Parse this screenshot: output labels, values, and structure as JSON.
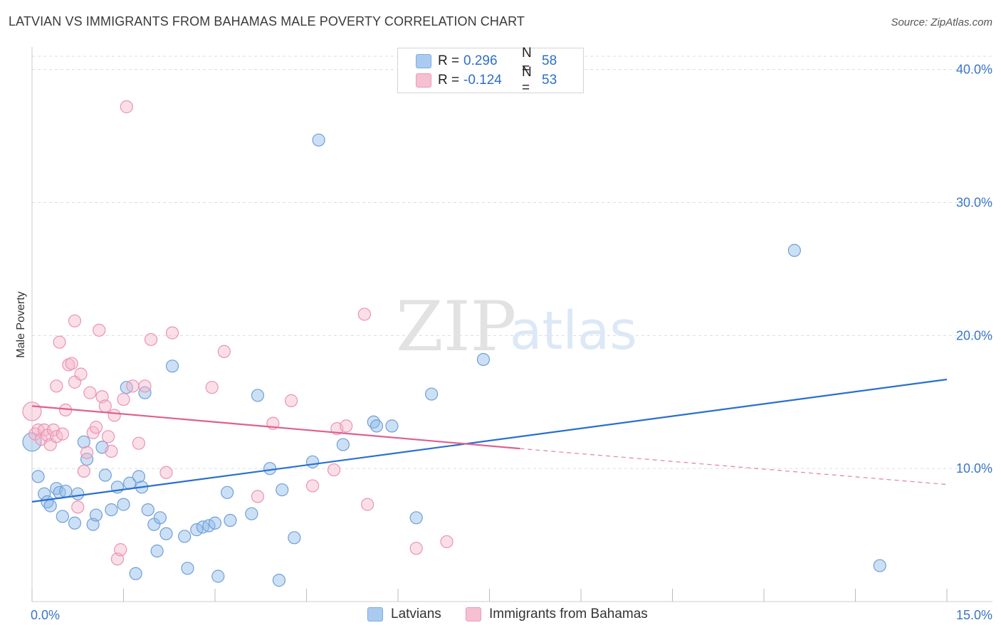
{
  "title": "LATVIAN VS IMMIGRANTS FROM BAHAMAS MALE POVERTY CORRELATION CHART",
  "source": "Source: ZipAtlas.com",
  "watermark": {
    "zip": "ZIP",
    "atlas": "atlas"
  },
  "legend_top": [
    {
      "r_label": "R =",
      "r_value": "0.296",
      "n_label": "N =",
      "n_value": "58",
      "color": "#aacbf0",
      "border": "#7fa9dd"
    },
    {
      "r_label": "R =",
      "r_value": "-0.124",
      "n_label": "N =",
      "n_value": "53",
      "color": "#f7c0d2",
      "border": "#e89ab5"
    }
  ],
  "legend_bottom": [
    {
      "label": "Latvians",
      "color": "#aacbf0",
      "border": "#7fa9dd"
    },
    {
      "label": "Immigrants from Bahamas",
      "color": "#f7c0d2",
      "border": "#e89ab5"
    }
  ],
  "chart_data": {
    "type": "scatter",
    "title": "LATVIAN VS IMMIGRANTS FROM BAHAMAS MALE POVERTY CORRELATION CHART",
    "xlabel": "",
    "ylabel": "Male Poverty",
    "xlim": [
      0,
      15
    ],
    "ylim": [
      0,
      41
    ],
    "x_tick_labels": [
      "0.0%",
      "15.0%"
    ],
    "y_tick_labels": [
      {
        "value": 10,
        "label": "10.0%"
      },
      {
        "value": 20,
        "label": "20.0%"
      },
      {
        "value": 30,
        "label": "30.0%"
      },
      {
        "value": 40,
        "label": "40.0%"
      }
    ],
    "grid": "horizontal dashed",
    "series": [
      {
        "name": "Latvians",
        "color": "#8fbbe8",
        "stroke": "#6f9fd8",
        "trend": {
          "x": [
            0,
            15
          ],
          "y": [
            7.5,
            16.7
          ],
          "color": "#2a6fce"
        },
        "points": [
          [
            0.0,
            12.0
          ],
          [
            0.1,
            9.4
          ],
          [
            0.2,
            8.1
          ],
          [
            0.25,
            7.5
          ],
          [
            0.3,
            7.2
          ],
          [
            0.4,
            8.5
          ],
          [
            0.45,
            8.2
          ],
          [
            0.5,
            6.4
          ],
          [
            0.55,
            8.3
          ],
          [
            0.7,
            5.9
          ],
          [
            0.75,
            8.1
          ],
          [
            0.85,
            12.0
          ],
          [
            0.9,
            10.7
          ],
          [
            1.0,
            5.8
          ],
          [
            1.05,
            6.5
          ],
          [
            1.15,
            11.6
          ],
          [
            1.2,
            9.5
          ],
          [
            1.3,
            6.9
          ],
          [
            1.4,
            8.6
          ],
          [
            1.5,
            7.3
          ],
          [
            1.55,
            16.1
          ],
          [
            1.6,
            8.9
          ],
          [
            1.7,
            2.1
          ],
          [
            1.75,
            9.4
          ],
          [
            1.8,
            8.6
          ],
          [
            1.85,
            15.7
          ],
          [
            1.9,
            6.9
          ],
          [
            2.0,
            5.8
          ],
          [
            2.05,
            3.8
          ],
          [
            2.1,
            6.3
          ],
          [
            2.2,
            5.1
          ],
          [
            2.3,
            17.7
          ],
          [
            2.5,
            4.9
          ],
          [
            2.55,
            2.5
          ],
          [
            2.7,
            5.4
          ],
          [
            2.8,
            5.6
          ],
          [
            2.9,
            5.7
          ],
          [
            3.0,
            5.9
          ],
          [
            3.05,
            1.9
          ],
          [
            3.2,
            8.2
          ],
          [
            3.25,
            6.1
          ],
          [
            3.6,
            6.6
          ],
          [
            3.7,
            15.5
          ],
          [
            3.9,
            10.0
          ],
          [
            4.05,
            1.6
          ],
          [
            4.1,
            8.4
          ],
          [
            4.3,
            4.8
          ],
          [
            4.6,
            10.5
          ],
          [
            4.7,
            34.7
          ],
          [
            5.1,
            11.8
          ],
          [
            5.6,
            13.5
          ],
          [
            5.65,
            13.2
          ],
          [
            5.9,
            13.2
          ],
          [
            6.3,
            6.3
          ],
          [
            6.55,
            15.6
          ],
          [
            7.4,
            18.2
          ],
          [
            12.5,
            26.4
          ],
          [
            13.9,
            2.7
          ]
        ]
      },
      {
        "name": "Immigrants from Bahamas",
        "color": "#f5b8cc",
        "stroke": "#ec93b1",
        "trend": {
          "x": [
            0,
            8.0
          ],
          "y": [
            14.7,
            11.5
          ],
          "color": "#e0608e",
          "dashed_to": {
            "x": 15,
            "y": 8.8
          }
        },
        "points": [
          [
            0.0,
            14.3
          ],
          [
            0.05,
            12.6
          ],
          [
            0.1,
            12.9
          ],
          [
            0.15,
            12.2
          ],
          [
            0.2,
            12.9
          ],
          [
            0.25,
            12.5
          ],
          [
            0.3,
            11.8
          ],
          [
            0.35,
            12.9
          ],
          [
            0.4,
            12.4
          ],
          [
            0.4,
            16.2
          ],
          [
            0.45,
            19.5
          ],
          [
            0.5,
            12.6
          ],
          [
            0.55,
            14.4
          ],
          [
            0.6,
            17.8
          ],
          [
            0.65,
            17.9
          ],
          [
            0.7,
            21.1
          ],
          [
            0.7,
            16.5
          ],
          [
            0.75,
            7.1
          ],
          [
            0.8,
            17.1
          ],
          [
            0.85,
            9.8
          ],
          [
            0.9,
            11.2
          ],
          [
            0.95,
            15.7
          ],
          [
            1.0,
            12.7
          ],
          [
            1.05,
            13.1
          ],
          [
            1.1,
            20.4
          ],
          [
            1.15,
            15.4
          ],
          [
            1.2,
            14.7
          ],
          [
            1.25,
            12.4
          ],
          [
            1.3,
            11.3
          ],
          [
            1.35,
            14.0
          ],
          [
            1.4,
            3.2
          ],
          [
            1.45,
            3.9
          ],
          [
            1.5,
            15.2
          ],
          [
            1.55,
            37.2
          ],
          [
            1.65,
            16.2
          ],
          [
            1.75,
            11.9
          ],
          [
            1.85,
            16.2
          ],
          [
            1.95,
            19.7
          ],
          [
            2.2,
            9.7
          ],
          [
            2.3,
            20.2
          ],
          [
            2.95,
            16.1
          ],
          [
            3.15,
            18.8
          ],
          [
            3.7,
            7.9
          ],
          [
            3.95,
            13.4
          ],
          [
            4.25,
            15.1
          ],
          [
            4.6,
            8.7
          ],
          [
            4.95,
            9.9
          ],
          [
            5.0,
            13.0
          ],
          [
            5.15,
            13.2
          ],
          [
            5.45,
            21.6
          ],
          [
            5.5,
            7.3
          ],
          [
            6.3,
            4.0
          ],
          [
            6.8,
            4.5
          ]
        ]
      }
    ]
  }
}
